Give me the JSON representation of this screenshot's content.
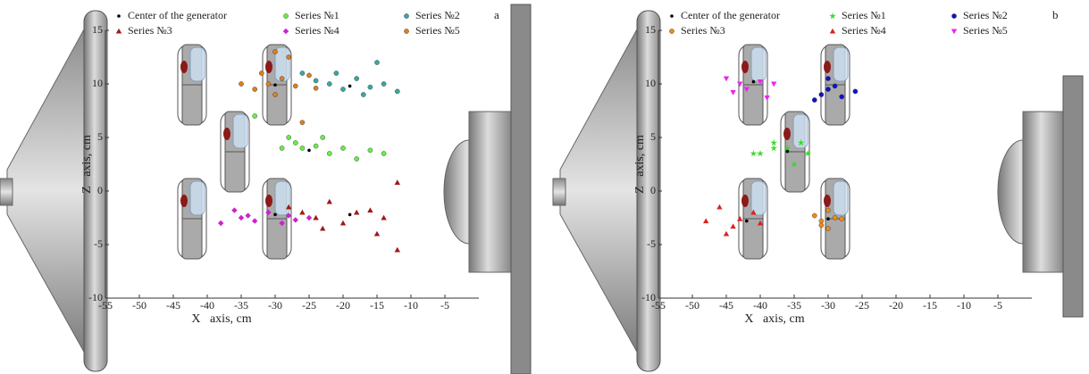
{
  "chart_data": [
    {
      "type": "scatter",
      "panel_label": "a",
      "xlabel": "X   axis, cm",
      "ylabel": "Z   axis, cm",
      "xlim": [
        -55,
        0
      ],
      "ylim": [
        -10,
        15
      ],
      "xticks": [
        -55,
        -50,
        -45,
        -40,
        -35,
        -30,
        -25,
        -20,
        -15,
        -10,
        -5
      ],
      "yticks": [
        -10,
        -5,
        0,
        5,
        10,
        15
      ],
      "series": [
        {
          "name": "Center of the generator",
          "color": "#000000",
          "marker": "dot",
          "x": [
            -30,
            -19,
            -25,
            -19,
            -30
          ],
          "y": [
            -2.2,
            -2.2,
            3.8,
            9.8,
            9.9
          ]
        },
        {
          "name": "Series №1",
          "color": "#66ee44",
          "marker": "circle",
          "x": [
            -33,
            -29,
            -28,
            -27,
            -26,
            -24,
            -23,
            -22,
            -20,
            -18,
            -16,
            -14
          ],
          "y": [
            7,
            4,
            5,
            4.5,
            4,
            4.2,
            5,
            3.5,
            4,
            3,
            3.8,
            3.5
          ]
        },
        {
          "name": "Series №2",
          "color": "#3aa7a0",
          "marker": "circle",
          "x": [
            -26,
            -24,
            -22,
            -21,
            -20,
            -18,
            -17,
            -16,
            -15,
            -14,
            -12
          ],
          "y": [
            11,
            10.3,
            10,
            11,
            9.5,
            10.5,
            9,
            9.7,
            12,
            10,
            9.3
          ]
        },
        {
          "name": "Series №3",
          "color": "#a01818",
          "marker": "triangle",
          "x": [
            -28,
            -26,
            -24,
            -23,
            -22,
            -20,
            -18,
            -16,
            -15,
            -14,
            -12,
            -12
          ],
          "y": [
            -1.5,
            -2,
            -2.5,
            -3.5,
            -1,
            -3,
            -2,
            -1.8,
            -4,
            -2.5,
            0.8,
            -5.5
          ]
        },
        {
          "name": "Series №4",
          "color": "#cc22cc",
          "marker": "diamond",
          "x": [
            -38,
            -36,
            -35,
            -34,
            -33,
            -31,
            -29,
            -28,
            -27,
            -25
          ],
          "y": [
            -3,
            -1.8,
            -2.5,
            -2.3,
            -2.8,
            -2,
            -3,
            -2.3,
            -2.7,
            -2.5
          ]
        },
        {
          "name": "Series №5",
          "color": "#d9801f",
          "marker": "circle",
          "x": [
            -35,
            -33,
            -32,
            -31,
            -30,
            -30,
            -29,
            -28,
            -27,
            -26,
            -25,
            -24
          ],
          "y": [
            10,
            9.5,
            11,
            10,
            9,
            13,
            10.5,
            12.5,
            9.8,
            6.4,
            10.8,
            9.6
          ]
        }
      ]
    },
    {
      "type": "scatter",
      "panel_label": "b",
      "xlabel": "X   axis, cm",
      "ylabel": "Z   axis, cm",
      "xlim": [
        -55,
        0
      ],
      "ylim": [
        -10,
        15
      ],
      "xticks": [
        -55,
        -50,
        -45,
        -40,
        -35,
        -30,
        -25,
        -20,
        -15,
        -10,
        -5
      ],
      "yticks": [
        -10,
        -5,
        0,
        5,
        10,
        15
      ],
      "series": [
        {
          "name": "Center of the generator",
          "color": "#000000",
          "marker": "dot",
          "x": [
            -42,
            -30,
            -36,
            -41,
            -30
          ],
          "y": [
            -2.8,
            -2.6,
            3.7,
            10.2,
            9.5
          ]
        },
        {
          "name": "Series №1",
          "color": "#33dd22",
          "marker": "star",
          "x": [
            -41,
            -40,
            -38,
            -38,
            -36,
            -35,
            -34,
            -33
          ],
          "y": [
            3.5,
            3.5,
            4.5,
            4,
            4,
            2.5,
            4.5,
            3.5
          ]
        },
        {
          "name": "Series №2",
          "color": "#1111cc",
          "marker": "circle",
          "x": [
            -32,
            -31,
            -30,
            -30,
            -29,
            -28,
            -26
          ],
          "y": [
            8.5,
            9,
            9.5,
            10.5,
            9.8,
            8.8,
            9.3
          ]
        },
        {
          "name": "Series №3",
          "color": "#f08a1a",
          "marker": "circle",
          "x": [
            -32,
            -31,
            -31,
            -30,
            -30,
            -29,
            -28
          ],
          "y": [
            -2.3,
            -2.8,
            -3.2,
            -3.5,
            -1.8,
            -2.5,
            -2.6
          ]
        },
        {
          "name": "Series №4",
          "color": "#dd2222",
          "marker": "triangle",
          "x": [
            -48,
            -46,
            -45,
            -44,
            -43,
            -41,
            -40
          ],
          "y": [
            -2.8,
            -1.5,
            -4,
            -3.3,
            -2.6,
            -2,
            -3
          ]
        },
        {
          "name": "Series №5",
          "color": "#ee22ee",
          "marker": "down",
          "x": [
            -45,
            -44,
            -43,
            -42,
            -40,
            -39,
            -38
          ],
          "y": [
            10.5,
            9.2,
            10,
            9.5,
            10.2,
            8.7,
            10
          ]
        }
      ]
    }
  ]
}
